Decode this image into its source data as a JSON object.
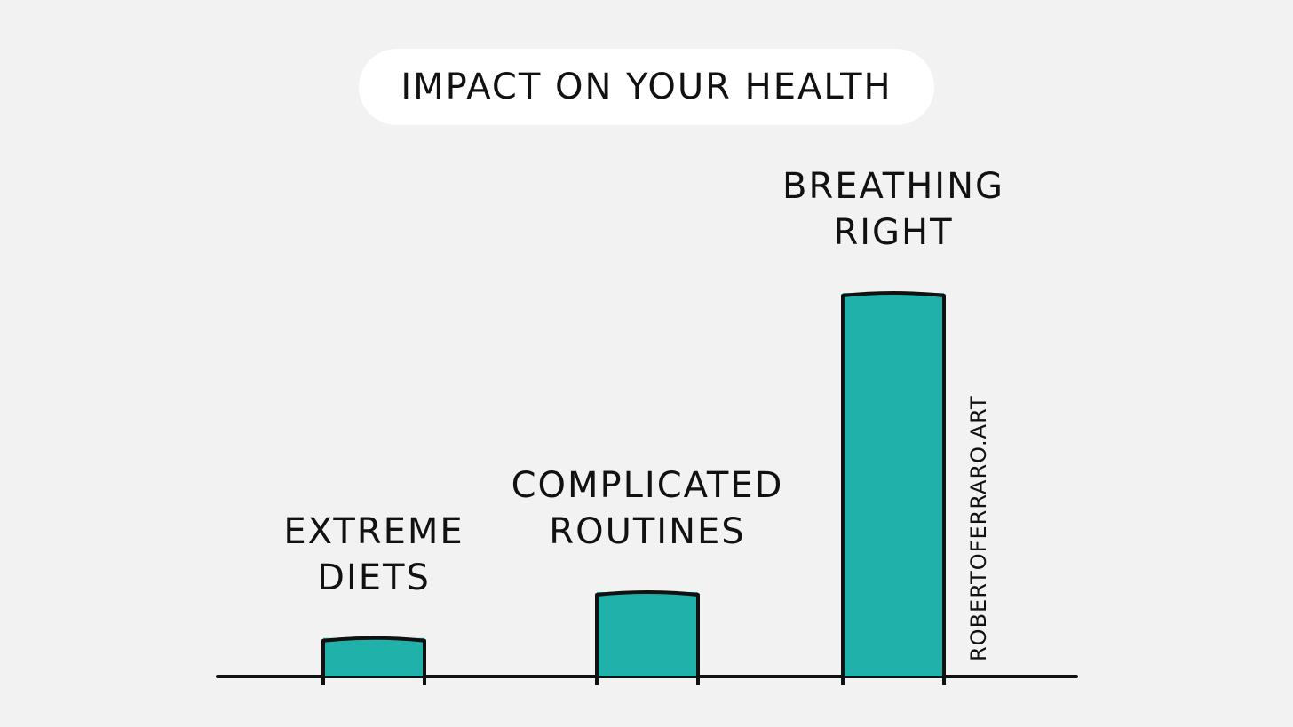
{
  "chart_data": {
    "type": "bar",
    "title": "IMPACT ON YOUR HEALTH",
    "categories": [
      "EXTREME DIETS",
      "COMPLICATED ROUTINES",
      "BREATHING RIGHT"
    ],
    "values": [
      10,
      22,
      100
    ],
    "color": "#20b2aa",
    "watermark": "ROBERTOFERRARO.ART"
  }
}
